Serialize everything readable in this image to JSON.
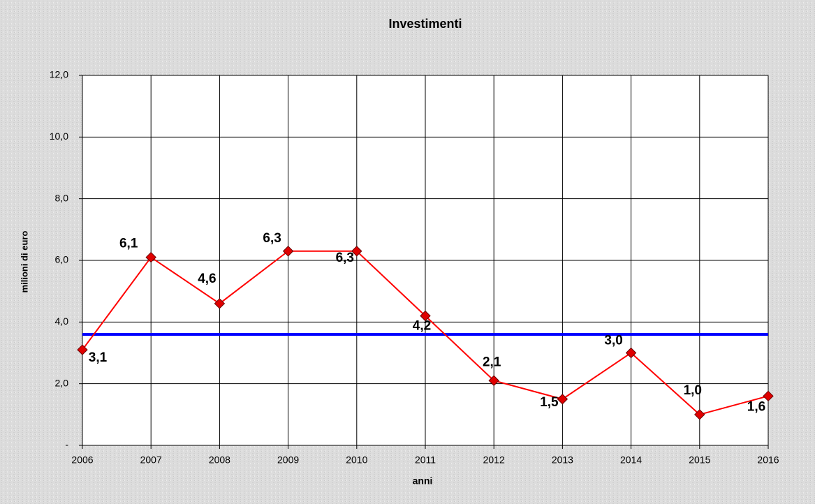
{
  "chart_data": {
    "type": "line",
    "title": "Investimenti",
    "x_label": "anni",
    "y_label": "milioni di euro",
    "x": [
      2006,
      2007,
      2008,
      2009,
      2010,
      2011,
      2012,
      2013,
      2014,
      2015,
      2016
    ],
    "xlim": [
      2006,
      2016
    ],
    "xticks": [
      2006,
      2007,
      2008,
      2009,
      2010,
      2011,
      2012,
      2013,
      2014,
      2015,
      2016
    ],
    "series": [
      {
        "name": "Investimenti",
        "color": "#ff0000",
        "values": [
          3.1,
          6.1,
          4.6,
          6.3,
          6.3,
          4.2,
          2.1,
          1.5,
          3.0,
          1.0,
          1.6
        ],
        "value_labels": [
          "3,1",
          "6,1",
          "4,6",
          "6,3",
          "6,3",
          "4,2",
          "2,1",
          "1,5",
          "3,0",
          "1,0",
          "1,6"
        ]
      }
    ],
    "reference_line": {
      "value": 3.6,
      "color": "#0000ff"
    },
    "ylim": [
      0,
      12
    ],
    "yticks": [
      {
        "value": 0,
        "label": "-"
      },
      {
        "value": 2,
        "label": "2,0"
      },
      {
        "value": 4,
        "label": "4,0"
      },
      {
        "value": 6,
        "label": "6,0"
      },
      {
        "value": 8,
        "label": "8,0"
      },
      {
        "value": 10,
        "label": "10,0"
      },
      {
        "value": 12,
        "label": "12,0"
      }
    ],
    "grid": true
  }
}
